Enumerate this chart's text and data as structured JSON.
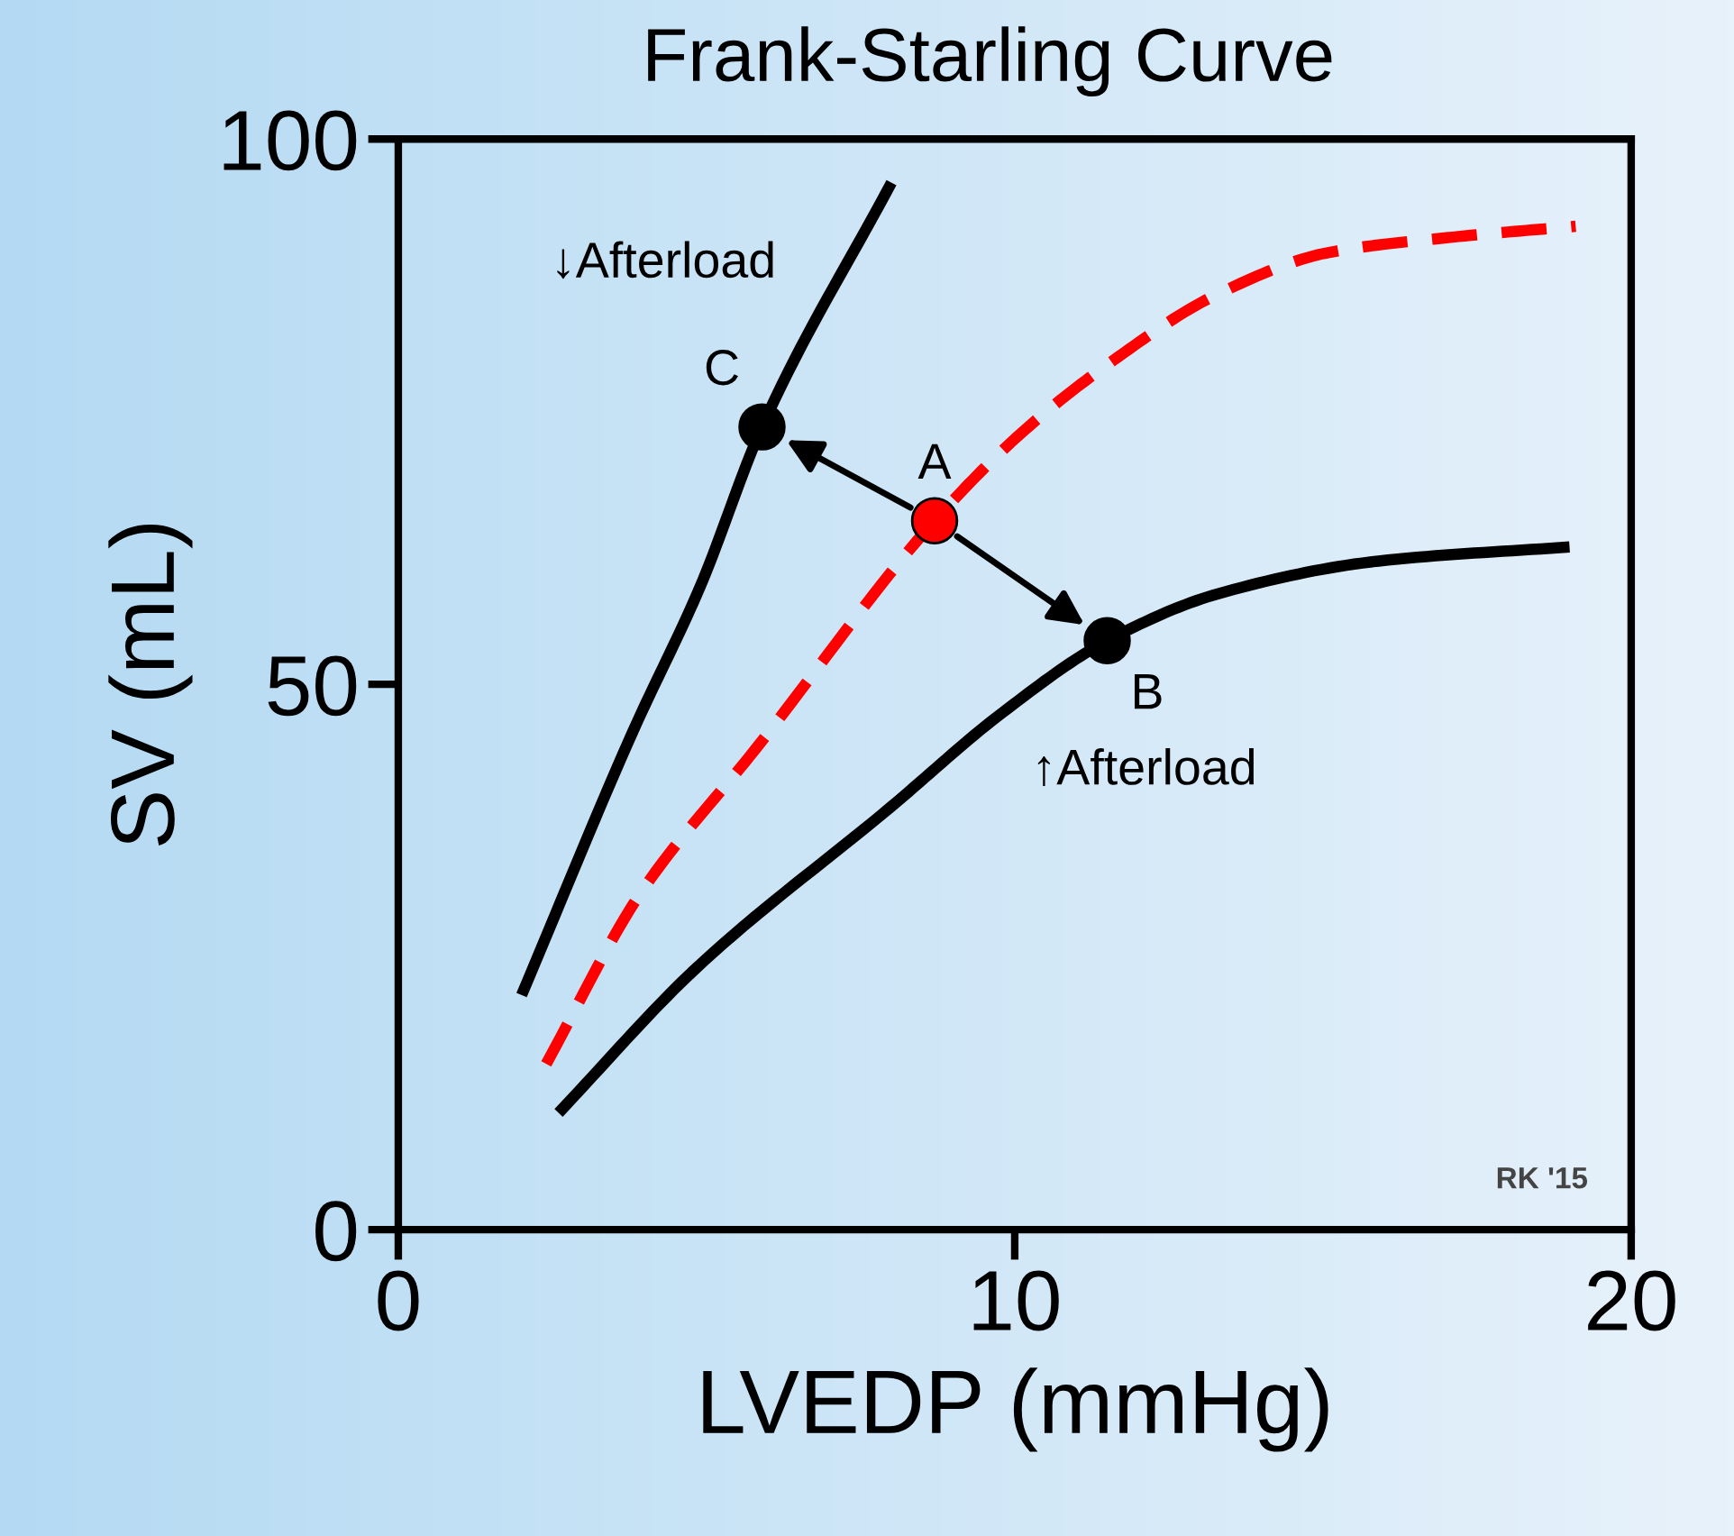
{
  "chart_data": {
    "type": "line",
    "title": "Frank-Starling Curve",
    "xlabel": "LVEDP (mmHg)",
    "ylabel": "SV (mL)",
    "xlim": [
      0,
      20
    ],
    "ylim": [
      0,
      100
    ],
    "xticks": [
      0,
      10,
      20
    ],
    "yticks": [
      0,
      50,
      100
    ],
    "grid": false,
    "legend": false,
    "series": [
      {
        "color": "#000000",
        "line_style": "solid",
        "x": [
          2.0,
          3.8,
          4.9,
          5.9,
          8.0
        ],
        "values": [
          21.5,
          45.6,
          59,
          73.6,
          96
        ]
      },
      {
        "color": "#ff0000",
        "line_style": "dashed",
        "x": [
          2.4,
          3.9,
          5.8,
          8.7,
          10.1,
          11.5,
          13.3,
          15.1,
          17.1,
          19.1
        ],
        "values": [
          15.2,
          30.6,
          44.1,
          65,
          73,
          79.3,
          85.8,
          89.6,
          91,
          92
        ]
      },
      {
        "color": "#000000",
        "line_style": "solid",
        "x": [
          2.6,
          4.8,
          8.0,
          9.8,
          11.5,
          13.3,
          15.9,
          19.0
        ],
        "values": [
          10.7,
          23.8,
          38.8,
          47.4,
          54,
          58.3,
          61.3,
          62.6
        ]
      },
      {
        "type": "scatter",
        "marker": "circle",
        "colors": [
          "#ff0000",
          "#000000",
          "#000000"
        ],
        "x": [
          8.7,
          11.5,
          5.9
        ],
        "values": [
          65,
          54,
          73.6
        ]
      }
    ],
    "annotations": [
      {
        "text": "A",
        "x": 8.7,
        "y": 65
      },
      {
        "text": "B",
        "x": 11.5,
        "y": 54
      },
      {
        "text": "C",
        "x": 5.9,
        "y": 73.6
      },
      "↓Afterload",
      "↑Afterload",
      "RK '15"
    ]
  }
}
